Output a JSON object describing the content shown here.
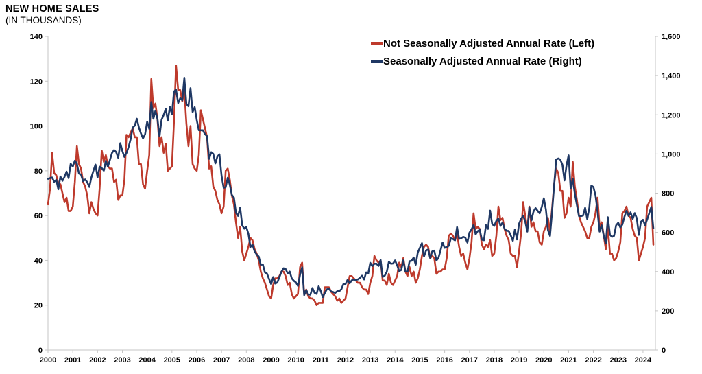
{
  "title": "NEW HOME SALES",
  "subtitle": "(IN THOUSANDS)",
  "legend": [
    {
      "label": "Not Seasonally Adjusted Annual Rate (Left)",
      "color": "#BE3A2C"
    },
    {
      "label": "Seasonally Adjusted Annual Rate (Right)",
      "color": "#1F3864"
    }
  ],
  "chart_data": {
    "type": "line",
    "x_unit": "monthly",
    "x_start": "2000-01",
    "x_end": "2024-06",
    "x_ticks": [
      "2000",
      "2001",
      "2002",
      "2003",
      "2004",
      "2005",
      "2006",
      "2007",
      "2008",
      "2009",
      "2010",
      "2011",
      "2012",
      "2013",
      "2014",
      "2015",
      "2016",
      "2017",
      "2018",
      "2019",
      "2020",
      "2021",
      "2022",
      "2023",
      "2024"
    ],
    "left_axis": {
      "min": 0,
      "max": 140,
      "tick_step": 20,
      "tick_labels": [
        "0",
        "20",
        "40",
        "60",
        "80",
        "100",
        "120",
        "140"
      ]
    },
    "right_axis": {
      "min": 0,
      "max": 1600,
      "tick_step": 200,
      "tick_labels": [
        "0",
        "200",
        "400",
        "600",
        "800",
        "1,000",
        "1,200",
        "1,400",
        "1,600"
      ]
    },
    "grid": false,
    "legend_position": "top-right-inside",
    "axis_color": "#C6C6C6",
    "series": [
      {
        "name": "Not Seasonally Adjusted Annual Rate",
        "axis": "left",
        "color": "#BE3A2C",
        "values": [
          65,
          72,
          88,
          79,
          78,
          74,
          74,
          70,
          66,
          68,
          62,
          62,
          64,
          75,
          91,
          83,
          81,
          75,
          73,
          69,
          61,
          66,
          63,
          61,
          60,
          72,
          89,
          84,
          87,
          82,
          81,
          81,
          75,
          76,
          67,
          69,
          69,
          76,
          96,
          95,
          97,
          99,
          95,
          95,
          83,
          83,
          74,
          72,
          80,
          87,
          121,
          108,
          110,
          103,
          91,
          95,
          88,
          92,
          80,
          81,
          82,
          102,
          127,
          116,
          116,
          111,
          116,
          101,
          91,
          100,
          83,
          81,
          80,
          87,
          107,
          103,
          99,
          95,
          81,
          82,
          73,
          71,
          67,
          65,
          61,
          64,
          80,
          81,
          76,
          69,
          65,
          57,
          50,
          55,
          44,
          40,
          43,
          46,
          50,
          49,
          45,
          43,
          40,
          35,
          32,
          30,
          27,
          24,
          23,
          29,
          32,
          32,
          33,
          35,
          35,
          33,
          29,
          30,
          25,
          23,
          24,
          25,
          37,
          39,
          25,
          27,
          24,
          23,
          23,
          22,
          20,
          21,
          21,
          21,
          28,
          28,
          28,
          26,
          25,
          24,
          22,
          23,
          21,
          22,
          23,
          28,
          33,
          33,
          32,
          31,
          30,
          30,
          28,
          27,
          27,
          25,
          30,
          33,
          42,
          40,
          39,
          40,
          31,
          31,
          29,
          34,
          30,
          29,
          31,
          33,
          39,
          37,
          41,
          35,
          33,
          37,
          33,
          35,
          30,
          32,
          36,
          42,
          46,
          47,
          46,
          41,
          42,
          41,
          34,
          35,
          35,
          36,
          36,
          41,
          51,
          52,
          51,
          49,
          52,
          46,
          42,
          43,
          39,
          36,
          41,
          48,
          61,
          54,
          55,
          54,
          47,
          45,
          47,
          46,
          49,
          42,
          43,
          51,
          64,
          58,
          59,
          54,
          51,
          49,
          43,
          42,
          42,
          37,
          44,
          52,
          66,
          60,
          54,
          64,
          55,
          57,
          53,
          53,
          48,
          47,
          53,
          55,
          59,
          53,
          63,
          74,
          81,
          79,
          71,
          71,
          59,
          61,
          68,
          64,
          84,
          73,
          67,
          60,
          57,
          55,
          53,
          50,
          50,
          55,
          57,
          61,
          68,
          55,
          57,
          51,
          45,
          55,
          43,
          43,
          40,
          41,
          44,
          48,
          61,
          62,
          64,
          60,
          59,
          54,
          51,
          50,
          40,
          43,
          46,
          50,
          64,
          66,
          68,
          47
        ]
      },
      {
        "name": "Seasonally Adjusted Annual Rate",
        "axis": "right",
        "color": "#1F3864",
        "values": [
          873,
          877,
          880,
          858,
          868,
          820,
          885,
          863,
          883,
          910,
          877,
          950,
          936,
          966,
          950,
          900,
          895,
          861,
          870,
          856,
          832,
          880,
          915,
          946,
          880,
          935,
          928,
          915,
          965,
          935,
          970,
          1005,
          1020,
          1010,
          980,
          1055,
          1015,
          985,
          1005,
          1035,
          1075,
          1135,
          1145,
          1180,
          1135,
          1105,
          1080,
          1100,
          1165,
          1128,
          1265,
          1180,
          1220,
          1180,
          1090,
          1175,
          1200,
          1230,
          1170,
          1240,
          1203,
          1319,
          1328,
          1260,
          1285,
          1274,
          1389,
          1255,
          1244,
          1336,
          1214,
          1239,
          1174,
          1121,
          1121,
          1121,
          1101,
          1091,
          975,
          1009,
          1001,
          952,
          987,
          998,
          891,
          828,
          830,
          879,
          843,
          791,
          778,
          699,
          684,
          727,
          637,
          619,
          627,
          593,
          526,
          537,
          503,
          487,
          477,
          435,
          437,
          396,
          390,
          362,
          336,
          372,
          339,
          344,
          371,
          399,
          417,
          413,
          391,
          400,
          365,
          353,
          345,
          327,
          384,
          422,
          280,
          306,
          283,
          282,
          316,
          292,
          286,
          325,
          301,
          270,
          291,
          310,
          312,
          299,
          296,
          291,
          300,
          300,
          310,
          336,
          336,
          358,
          340,
          355,
          360,
          357,
          360,
          368,
          379,
          360,
          396,
          390,
          445,
          428,
          440,
          440,
          429,
          459,
          373,
          379,
          399,
          450,
          440,
          441,
          457,
          432,
          403,
          408,
          457,
          401,
          399,
          453,
          455,
          472,
          435,
          497,
          521,
          545,
          477,
          508,
          513,
          469,
          503,
          507,
          457,
          470,
          508,
          548,
          521,
          525,
          531,
          570,
          566,
          559,
          627,
          567,
          570,
          577,
          573,
          548,
          599,
          615,
          638,
          590,
          606,
          614,
          563,
          560,
          637,
          618,
          711,
          643,
          633,
          659,
          672,
          633,
          650,
          618,
          608,
          607,
          585,
          557,
          615,
          564,
          644,
          669,
          685,
          656,
          604,
          729,
          661,
          706,
          724,
          710,
          697,
          730,
          774,
          716,
          612,
          582,
          704,
          840,
          972,
          977,
          971,
          945,
          865,
          943,
          993,
          823,
          873,
          796,
          740,
          683,
          683,
          686,
          725,
          668,
          725,
          839,
          831,
          790,
          707,
          604,
          636,
          582,
          543,
          677,
          588,
          577,
          582,
          636,
          649,
          625,
          640,
          679,
          710,
          684,
          702,
          669,
          698,
          672,
          587,
          654,
          664,
          637,
          665,
          698,
          730,
          621
        ]
      }
    ]
  }
}
